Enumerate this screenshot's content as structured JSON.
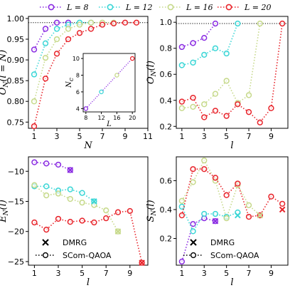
{
  "legend": {
    "items": [
      {
        "label": "L = 8",
        "color": "#8a2be2"
      },
      {
        "label": "L = 12",
        "color": "#3ad6d6"
      },
      {
        "label": "L = 16",
        "color": "#c6d98a"
      },
      {
        "label": "L = 20",
        "color": "#e8242b"
      }
    ]
  },
  "chart_data": [
    {
      "id": "a",
      "type": "line",
      "ylabel": "O_N(l = N)",
      "xlabel": "N",
      "xlim": [
        0.5,
        11
      ],
      "ylim": [
        0.735,
        1.005
      ],
      "xticks": [
        1,
        3,
        5,
        7,
        9,
        11
      ],
      "yticks": [
        0.75,
        0.8,
        0.85,
        0.9,
        0.95,
        1.0
      ],
      "ytick_labels": [
        "0.75",
        "0.80",
        "0.85",
        "0.90",
        "0.95",
        "1.00"
      ],
      "hline": 0.99,
      "series": [
        {
          "name": "L = 8",
          "x": [
            1,
            2,
            3,
            4
          ],
          "y": [
            0.925,
            0.975,
            0.99,
            0.99
          ]
        },
        {
          "name": "L = 12",
          "x": [
            1,
            2,
            3,
            4,
            5,
            6
          ],
          "y": [
            0.865,
            0.94,
            0.975,
            0.985,
            0.99,
            0.99
          ]
        },
        {
          "name": "L = 16",
          "x": [
            1,
            2,
            3,
            4,
            5,
            6,
            7,
            8
          ],
          "y": [
            0.8,
            0.905,
            0.95,
            0.975,
            0.985,
            0.99,
            0.99,
            0.99
          ]
        },
        {
          "name": "L = 20",
          "x": [
            1,
            2,
            3,
            4,
            5,
            6,
            7,
            8,
            9,
            10
          ],
          "y": [
            0.74,
            0.855,
            0.915,
            0.95,
            0.965,
            0.975,
            0.985,
            0.988,
            0.99,
            0.99
          ]
        }
      ],
      "inset": {
        "xlabel": "L",
        "ylabel": "N_c",
        "xlim": [
          7.3,
          20.7
        ],
        "ylim": [
          3.6,
          10.6
        ],
        "xticks": [
          8,
          12,
          16,
          20
        ],
        "yticks": [
          4,
          6,
          8,
          10
        ],
        "x": [
          8,
          12,
          16,
          20
        ],
        "y": [
          4,
          6,
          8,
          10
        ]
      }
    },
    {
      "id": "b",
      "type": "line",
      "ylabel": "O_N(l)",
      "xlabel": "l",
      "xlim": [
        0.5,
        10.5
      ],
      "ylim": [
        0.185,
        1.045
      ],
      "xticks": [
        1,
        3,
        5,
        7,
        9
      ],
      "yticks": [
        0.2,
        0.4,
        0.6,
        0.8,
        1.0
      ],
      "ytick_labels": [
        "0.2",
        "0.4",
        "0.6",
        "0.8",
        "1.0"
      ],
      "hline": 0.99,
      "series": [
        {
          "name": "L = 8",
          "x": [
            1,
            2,
            3,
            4
          ],
          "y": [
            0.81,
            0.84,
            0.88,
            0.99
          ]
        },
        {
          "name": "L = 12",
          "x": [
            1,
            2,
            3,
            4,
            5,
            6
          ],
          "y": [
            0.67,
            0.69,
            0.75,
            0.8,
            0.76,
            0.99
          ]
        },
        {
          "name": "L = 16",
          "x": [
            1,
            2,
            3,
            4,
            5,
            6,
            7,
            8
          ],
          "y": [
            0.34,
            0.35,
            0.37,
            0.45,
            0.55,
            0.38,
            0.44,
            0.99
          ]
        },
        {
          "name": "L = 20",
          "x": [
            1,
            2,
            3,
            4,
            5,
            6,
            7,
            8,
            9,
            10
          ],
          "y": [
            0.39,
            0.42,
            0.27,
            0.32,
            0.28,
            0.37,
            0.31,
            0.23,
            0.34,
            0.99
          ]
        }
      ]
    },
    {
      "id": "c",
      "type": "line",
      "ylabel": "E_N(l)",
      "xlabel": "l",
      "xlim": [
        0.5,
        10.5
      ],
      "ylim": [
        -25.6,
        -7.6
      ],
      "xticks": [
        1,
        3,
        5,
        7,
        9
      ],
      "yticks": [
        -25,
        -20,
        -15,
        -10
      ],
      "ytick_labels": [
        "−25",
        "−20",
        "−15",
        "−10"
      ],
      "series": [
        {
          "name": "L = 8",
          "x": [
            1,
            2,
            3,
            4
          ],
          "y": [
            -8.5,
            -8.7,
            -8.9,
            -9.8
          ]
        },
        {
          "name": "L = 12",
          "x": [
            1,
            2,
            3,
            4,
            5,
            6
          ],
          "y": [
            -12.5,
            -12.5,
            -13.2,
            -13.0,
            -13.6,
            -15.0
          ]
        },
        {
          "name": "L = 16",
          "x": [
            1,
            2,
            3,
            4,
            5,
            6,
            7,
            8
          ],
          "y": [
            -12.3,
            -14.0,
            -13.7,
            -14.6,
            -15.2,
            -15.6,
            -16.5,
            -20.0
          ]
        },
        {
          "name": "L = 20",
          "x": [
            1,
            2,
            3,
            4,
            5,
            6,
            7,
            8,
            9,
            10
          ],
          "y": [
            -18.5,
            -19.7,
            -17.9,
            -18.4,
            -18.2,
            -18.5,
            -17.8,
            -16.8,
            -16.6,
            -25.2
          ]
        }
      ],
      "dmrg": [
        {
          "name": "L = 8",
          "x": 4,
          "y": -9.8
        },
        {
          "name": "L = 12",
          "x": 6,
          "y": -15.0
        },
        {
          "name": "L = 16",
          "x": 8,
          "y": -20.0
        },
        {
          "name": "L = 20",
          "x": 10,
          "y": -25.2
        }
      ],
      "legend": {
        "dmrg": "DMRG",
        "qaoa": "SCom-QAOA"
      }
    },
    {
      "id": "d",
      "type": "line",
      "ylabel": "S_N(l)",
      "xlabel": "l",
      "xlim": [
        0.5,
        10.5
      ],
      "ylim": [
        0.015,
        0.765
      ],
      "xticks": [
        1,
        3,
        5,
        7,
        9
      ],
      "yticks": [
        0.2,
        0.4,
        0.6
      ],
      "ytick_labels": [
        "0.2",
        "0.4",
        "0.6"
      ],
      "series": [
        {
          "name": "L = 8",
          "x": [
            1,
            2,
            3,
            4
          ],
          "y": [
            0.04,
            0.3,
            0.34,
            0.32
          ]
        },
        {
          "name": "L = 12",
          "x": [
            1,
            2,
            3,
            4,
            5,
            6
          ],
          "y": [
            0.42,
            0.25,
            0.37,
            0.37,
            0.35,
            0.38
          ]
        },
        {
          "name": "L = 16",
          "x": [
            1,
            2,
            3,
            4,
            5,
            6,
            7,
            8
          ],
          "y": [
            0.46,
            0.59,
            0.74,
            0.6,
            0.34,
            0.57,
            0.43,
            0.36
          ]
        },
        {
          "name": "L = 20",
          "x": [
            1,
            2,
            3,
            4,
            5,
            6,
            7,
            8,
            9,
            10
          ],
          "y": [
            0.36,
            0.68,
            0.68,
            0.62,
            0.5,
            0.58,
            0.35,
            0.36,
            0.49,
            0.44
          ]
        }
      ],
      "dmrg": [
        {
          "name": "L = 8",
          "x": 4,
          "y": 0.32
        },
        {
          "name": "L = 12",
          "x": 6,
          "y": 0.36
        },
        {
          "name": "L = 16",
          "x": 8,
          "y": 0.36
        },
        {
          "name": "L = 20",
          "x": 10,
          "y": 0.4
        }
      ],
      "legend": {
        "dmrg": "DMRG",
        "qaoa": "SCom-QAOA"
      }
    }
  ]
}
